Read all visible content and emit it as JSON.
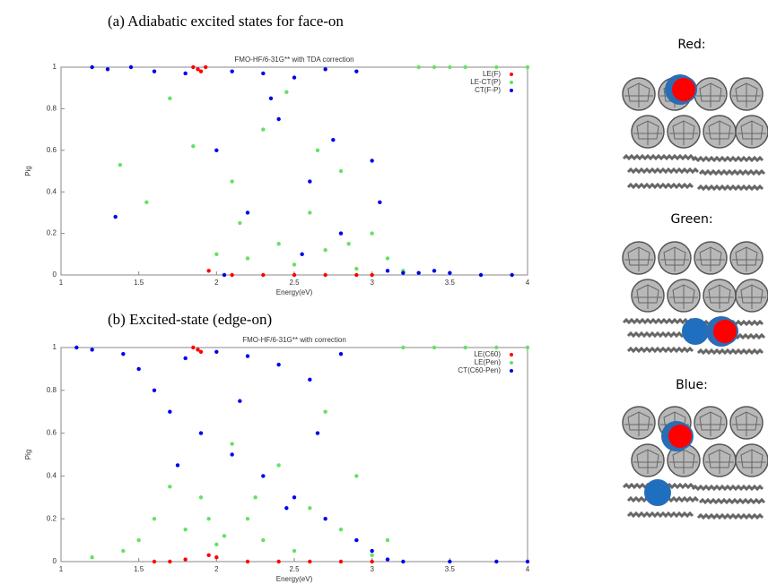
{
  "chart_data": [
    {
      "type": "scatter",
      "caption": "(a)  Adiabatic excited states for face-on",
      "title": "FMO-HF/6-31G** with TDA correction",
      "x_label": "Energy(eV)",
      "y_label": "Pig",
      "xlim": [
        1,
        4
      ],
      "xticks": [
        1,
        1.5,
        2,
        2.5,
        3,
        3.5,
        4
      ],
      "ylim": [
        0,
        1
      ],
      "yticks": [
        0,
        0.2,
        0.4,
        0.6,
        0.8,
        1
      ],
      "legend": "upper right",
      "series": [
        {
          "name": "LE(F)",
          "color": "#ff0000",
          "x": [
            1.85,
            1.88,
            1.9,
            1.93,
            1.95,
            2.1,
            2.3,
            2.5,
            2.7,
            2.9,
            3.0
          ],
          "values": [
            1,
            0.99,
            0.98,
            1,
            0.02,
            0,
            0,
            0,
            0,
            0,
            0
          ]
        },
        {
          "name": "LE-CT(P)",
          "color": "#66e066",
          "x": [
            1.38,
            1.55,
            1.7,
            1.85,
            2.0,
            2.1,
            2.2,
            2.3,
            2.4,
            2.5,
            2.6,
            2.7,
            2.8,
            2.9,
            3.0,
            3.1,
            3.2,
            3.3,
            3.4,
            3.5,
            3.6,
            3.8,
            4.0,
            2.45,
            2.65,
            2.15,
            2.85
          ],
          "values": [
            0.53,
            0.35,
            0.85,
            0.62,
            0.1,
            0.45,
            0.08,
            0.7,
            0.15,
            0.05,
            0.3,
            0.12,
            0.5,
            0.03,
            0.2,
            0.08,
            0.02,
            1,
            1,
            1,
            1,
            1,
            1,
            0.88,
            0.6,
            0.25,
            0.15
          ]
        },
        {
          "name": "CT(F-P)",
          "color": "#0000ee",
          "x": [
            1.2,
            1.3,
            1.45,
            1.6,
            1.8,
            2.0,
            2.1,
            2.2,
            2.3,
            2.4,
            2.5,
            2.6,
            2.7,
            2.8,
            2.9,
            3.0,
            3.1,
            3.2,
            3.3,
            3.4,
            3.5,
            3.7,
            3.9,
            2.35,
            2.55,
            2.75,
            2.05,
            3.05,
            1.35
          ],
          "values": [
            1,
            0.99,
            1,
            0.98,
            0.97,
            0.6,
            0.98,
            0.3,
            0.97,
            0.75,
            0.95,
            0.45,
            0.99,
            0.2,
            0.98,
            0.55,
            0.02,
            0.01,
            0.01,
            0.02,
            0.01,
            0,
            0,
            0.85,
            0.1,
            0.65,
            0,
            0.35,
            0.28
          ]
        }
      ]
    },
    {
      "type": "scatter",
      "caption": "(b)  Excited-state (edge-on)",
      "title": "FMO-HF/6-31G** with correction",
      "x_label": "Energy(eV)",
      "y_label": "Pig",
      "xlim": [
        1,
        4
      ],
      "xticks": [
        1,
        1.5,
        2,
        2.5,
        3,
        3.5,
        4
      ],
      "ylim": [
        0,
        1
      ],
      "yticks": [
        0,
        0.2,
        0.4,
        0.6,
        0.8,
        1
      ],
      "legend": "upper right",
      "series": [
        {
          "name": "LE(C60)",
          "color": "#ff0000",
          "x": [
            1.85,
            1.88,
            1.9,
            1.6,
            1.7,
            1.8,
            1.95,
            2.0,
            2.2,
            2.4,
            2.6,
            2.8,
            3.0
          ],
          "values": [
            1,
            0.99,
            0.98,
            0,
            0,
            0.01,
            0.03,
            0.02,
            0,
            0,
            0,
            0,
            0
          ]
        },
        {
          "name": "LE(Pen)",
          "color": "#66e066",
          "x": [
            1.2,
            1.4,
            1.5,
            1.6,
            1.7,
            1.8,
            1.9,
            2.0,
            2.1,
            2.2,
            2.3,
            2.4,
            2.5,
            2.6,
            2.7,
            2.8,
            2.9,
            3.0,
            3.1,
            3.2,
            3.4,
            3.6,
            3.8,
            4.0,
            1.95,
            2.05,
            2.25
          ],
          "values": [
            0.02,
            0.05,
            0.1,
            0.2,
            0.35,
            0.15,
            0.3,
            0.08,
            0.55,
            0.2,
            0.1,
            0.45,
            0.05,
            0.25,
            0.7,
            0.15,
            0.4,
            0.03,
            0.1,
            1,
            1,
            1,
            1,
            1,
            0.2,
            0.12,
            0.3
          ]
        },
        {
          "name": "CT(C60-Pen)",
          "color": "#0000ee",
          "x": [
            1.1,
            1.2,
            1.4,
            1.5,
            1.6,
            1.7,
            1.8,
            1.9,
            2.0,
            2.1,
            2.2,
            2.3,
            2.4,
            2.5,
            2.6,
            2.7,
            2.8,
            2.9,
            3.0,
            3.1,
            3.2,
            3.5,
            3.8,
            4.0,
            1.75,
            2.15,
            2.45,
            2.65
          ],
          "values": [
            1,
            0.99,
            0.97,
            0.9,
            0.8,
            0.7,
            0.95,
            0.6,
            0.98,
            0.5,
            0.96,
            0.4,
            0.92,
            0.3,
            0.85,
            0.2,
            0.97,
            0.1,
            0.05,
            0.01,
            0,
            0,
            0,
            0,
            0.45,
            0.75,
            0.25,
            0.6
          ]
        }
      ]
    }
  ],
  "panels": [
    {
      "label": "Red:"
    },
    {
      "label": "Green:"
    },
    {
      "label": "Blue:"
    }
  ]
}
